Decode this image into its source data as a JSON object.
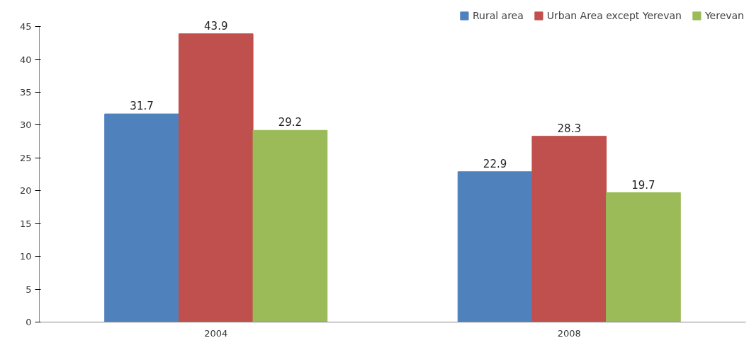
{
  "chart_data": {
    "type": "bar",
    "categories": [
      "2004",
      "2008"
    ],
    "series": [
      {
        "name": "Rural area",
        "color": "#4f81bd",
        "values": [
          31.7,
          22.9
        ]
      },
      {
        "name": "Urban Area except Yerevan",
        "color": "#c0504d",
        "values": [
          43.9,
          28.3
        ]
      },
      {
        "name": "Yerevan",
        "color": "#9bbb59",
        "values": [
          29.2,
          19.7
        ]
      }
    ],
    "ylim": [
      0,
      45
    ],
    "yticks": [
      0,
      5,
      10,
      15,
      20,
      25,
      30,
      35,
      40,
      45
    ],
    "grid": false,
    "legend": "top right",
    "data_labels": true
  }
}
